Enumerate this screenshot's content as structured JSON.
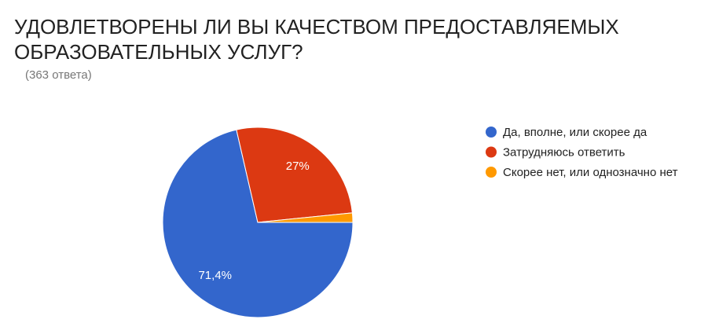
{
  "chart_data": {
    "type": "pie",
    "title": "УДОВЛЕТВОРЕНЫ ЛИ ВЫ КАЧЕСТВОМ ПРЕДОСТАВЛЯЕМЫХ ОБРАЗОВАТЕЛЬНЫХ УСЛУГ?",
    "subtitle": "(363 ответа)",
    "categories": [
      "Да, вполне, или скорее да",
      "Затрудняюсь ответить",
      "Скорее нет, или однозначно нет"
    ],
    "values": [
      71.4,
      27,
      1.6
    ],
    "value_labels": [
      "71,4%",
      "27%",
      null
    ],
    "colors": [
      "#3366cc",
      "#dc3912",
      "#ff9900"
    ],
    "legend": "right"
  }
}
